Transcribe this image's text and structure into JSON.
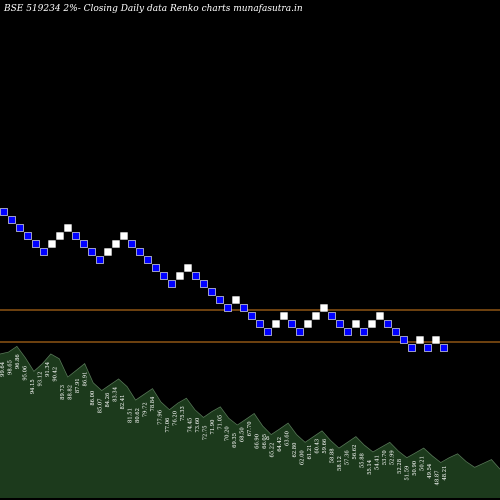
{
  "chart_data": {
    "type": "renko",
    "title": "BSE 519234  2%-  Closing Daily data  Renko  charts munafasutra.in",
    "colors": {
      "background": "#000000",
      "down_brick": "#0000ff",
      "down_border": "#ffffff",
      "up_brick": "#ffffff",
      "resistance_line": "#d7801e",
      "volume_fill": "#1c3a1c",
      "volume_edge": "#5a7a5a"
    },
    "bricks": [
      {
        "c": 0,
        "lvl": 0,
        "dir": "down"
      },
      {
        "c": 1,
        "lvl": 1,
        "dir": "down"
      },
      {
        "c": 2,
        "lvl": 2,
        "dir": "down"
      },
      {
        "c": 3,
        "lvl": 3,
        "dir": "down"
      },
      {
        "c": 4,
        "lvl": 4,
        "dir": "down"
      },
      {
        "c": 5,
        "lvl": 5,
        "dir": "down"
      },
      {
        "c": 6,
        "lvl": 4,
        "dir": "up"
      },
      {
        "c": 7,
        "lvl": 3,
        "dir": "up"
      },
      {
        "c": 8,
        "lvl": 2,
        "dir": "up"
      },
      {
        "c": 9,
        "lvl": 3,
        "dir": "down"
      },
      {
        "c": 10,
        "lvl": 4,
        "dir": "down"
      },
      {
        "c": 11,
        "lvl": 5,
        "dir": "down"
      },
      {
        "c": 12,
        "lvl": 6,
        "dir": "down"
      },
      {
        "c": 13,
        "lvl": 5,
        "dir": "up"
      },
      {
        "c": 14,
        "lvl": 4,
        "dir": "up"
      },
      {
        "c": 15,
        "lvl": 3,
        "dir": "up"
      },
      {
        "c": 16,
        "lvl": 4,
        "dir": "down"
      },
      {
        "c": 17,
        "lvl": 5,
        "dir": "down"
      },
      {
        "c": 18,
        "lvl": 6,
        "dir": "down"
      },
      {
        "c": 19,
        "lvl": 7,
        "dir": "down"
      },
      {
        "c": 20,
        "lvl": 8,
        "dir": "down"
      },
      {
        "c": 21,
        "lvl": 9,
        "dir": "down"
      },
      {
        "c": 22,
        "lvl": 8,
        "dir": "up"
      },
      {
        "c": 23,
        "lvl": 7,
        "dir": "up"
      },
      {
        "c": 24,
        "lvl": 8,
        "dir": "down"
      },
      {
        "c": 25,
        "lvl": 9,
        "dir": "down"
      },
      {
        "c": 26,
        "lvl": 10,
        "dir": "down"
      },
      {
        "c": 27,
        "lvl": 11,
        "dir": "down"
      },
      {
        "c": 28,
        "lvl": 12,
        "dir": "down"
      },
      {
        "c": 29,
        "lvl": 11,
        "dir": "up"
      },
      {
        "c": 30,
        "lvl": 12,
        "dir": "down"
      },
      {
        "c": 31,
        "lvl": 13,
        "dir": "down"
      },
      {
        "c": 32,
        "lvl": 14,
        "dir": "down"
      },
      {
        "c": 33,
        "lvl": 15,
        "dir": "down"
      },
      {
        "c": 34,
        "lvl": 14,
        "dir": "up"
      },
      {
        "c": 35,
        "lvl": 13,
        "dir": "up"
      },
      {
        "c": 36,
        "lvl": 14,
        "dir": "down"
      },
      {
        "c": 37,
        "lvl": 15,
        "dir": "down"
      },
      {
        "c": 38,
        "lvl": 14,
        "dir": "up"
      },
      {
        "c": 39,
        "lvl": 13,
        "dir": "up"
      },
      {
        "c": 40,
        "lvl": 12,
        "dir": "up"
      },
      {
        "c": 41,
        "lvl": 13,
        "dir": "down"
      },
      {
        "c": 42,
        "lvl": 14,
        "dir": "down"
      },
      {
        "c": 43,
        "lvl": 15,
        "dir": "down"
      },
      {
        "c": 44,
        "lvl": 14,
        "dir": "up"
      },
      {
        "c": 45,
        "lvl": 15,
        "dir": "down"
      },
      {
        "c": 46,
        "lvl": 14,
        "dir": "up"
      },
      {
        "c": 47,
        "lvl": 13,
        "dir": "up"
      },
      {
        "c": 48,
        "lvl": 14,
        "dir": "down"
      },
      {
        "c": 49,
        "lvl": 15,
        "dir": "down"
      },
      {
        "c": 50,
        "lvl": 16,
        "dir": "down"
      },
      {
        "c": 51,
        "lvl": 17,
        "dir": "down"
      },
      {
        "c": 52,
        "lvl": 16,
        "dir": "up"
      },
      {
        "c": 53,
        "lvl": 17,
        "dir": "down"
      },
      {
        "c": 54,
        "lvl": 16,
        "dir": "up"
      },
      {
        "c": 55,
        "lvl": 17,
        "dir": "down"
      }
    ],
    "horizontal_lines": [
      {
        "level": 12.75,
        "label": ""
      },
      {
        "level": 16.75,
        "label": ""
      }
    ],
    "volume_labels": [
      "99.64",
      "98.65",
      "96.86",
      "95.06",
      "94.15",
      "93.12",
      "91.34",
      "90.42",
      "89.73",
      "88.82",
      "87.91",
      "86.91",
      "86.00",
      "85.07",
      "84.26",
      "83.34",
      "82.41",
      "81.51",
      "80.62",
      "79.72",
      "78.84",
      "77.96",
      "77.06",
      "76.20",
      "75.33",
      "74.45",
      "73.60",
      "72.75",
      "71.90",
      "71.05",
      "70.20",
      "69.35",
      "68.50",
      "67.70",
      "66.90",
      "66.05",
      "65.22",
      "64.42",
      "63.60",
      "62.80",
      "62.00",
      "61.21",
      "60.43",
      "59.66",
      "58.88",
      "58.12",
      "57.36",
      "56.62",
      "55.88",
      "55.14",
      "54.41",
      "53.70",
      "52.99",
      "52.28",
      "51.59",
      "50.90",
      "50.21",
      "49.54",
      "48.87",
      "48.21"
    ],
    "volume_values": [
      150,
      152,
      158,
      146,
      132,
      140,
      150,
      145,
      126,
      133,
      140,
      120,
      112,
      118,
      124,
      116,
      102,
      108,
      114,
      100,
      92,
      99,
      104,
      92,
      84,
      90,
      95,
      83,
      76,
      82,
      88,
      75,
      66,
      72,
      78,
      66,
      58,
      64,
      70,
      60,
      52,
      58,
      64,
      55,
      48,
      53,
      58,
      49,
      42,
      47,
      52,
      44,
      37,
      42,
      46,
      38,
      32,
      36,
      40,
      30
    ],
    "marker": "6"
  }
}
